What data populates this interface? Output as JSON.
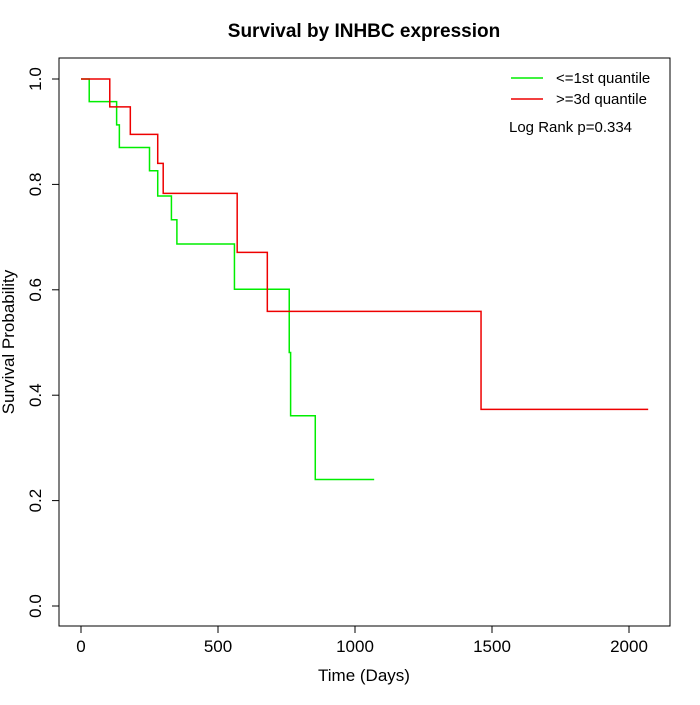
{
  "chart_data": {
    "type": "line",
    "title": "Survival by INHBC expression",
    "xlabel": "Time (Days)",
    "ylabel": "Survival Probability",
    "xlim": [
      0,
      2070
    ],
    "ylim": [
      0,
      1
    ],
    "x_ticks": [
      0,
      500,
      1000,
      1500,
      2000
    ],
    "x_tick_labels": [
      "0",
      "500",
      "1000",
      "1500",
      "2000"
    ],
    "y_ticks": [
      0,
      0.2,
      0.4,
      0.6,
      0.8,
      1.0
    ],
    "y_tick_labels": [
      "0.0",
      "0.2",
      "0.4",
      "0.6",
      "0.8",
      "1.0"
    ],
    "grid": false,
    "legend_position": "top-right",
    "annotation": "Log Rank p=0.334",
    "series": [
      {
        "name": "<=1st quantile",
        "color": "#00ee00",
        "x": [
          0,
          30,
          130,
          140,
          250,
          280,
          330,
          350,
          560,
          760,
          765,
          855,
          1070
        ],
        "y": [
          1.0,
          0.957,
          0.913,
          0.87,
          0.826,
          0.778,
          0.733,
          0.687,
          0.601,
          0.481,
          0.361,
          0.24,
          0.24
        ]
      },
      {
        "name": ">=3d quantile",
        "color": "#ee0000",
        "x": [
          0,
          105,
          180,
          280,
          300,
          310,
          570,
          680,
          1460,
          2070
        ],
        "y": [
          1.0,
          0.947,
          0.895,
          0.84,
          0.783,
          0.783,
          0.671,
          0.559,
          0.373,
          0.373
        ]
      }
    ]
  }
}
